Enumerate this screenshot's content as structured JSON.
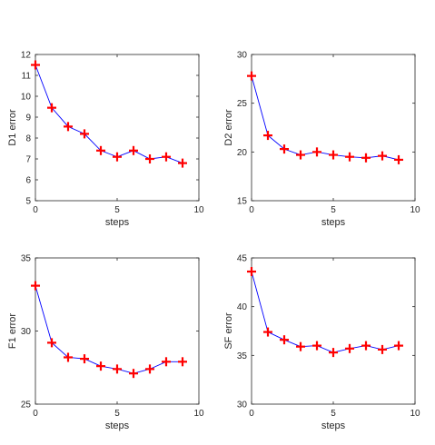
{
  "chart_data": [
    {
      "type": "line",
      "xlabel": "steps",
      "ylabel": "D1 error",
      "xlim": [
        0,
        10
      ],
      "ylim": [
        5,
        12
      ],
      "xticks": [
        0,
        5,
        10
      ],
      "yticks": [
        5,
        6,
        7,
        8,
        9,
        10,
        11,
        12
      ],
      "x": [
        0,
        1,
        2,
        3,
        4,
        5,
        6,
        7,
        8,
        9
      ],
      "values": [
        11.5,
        9.45,
        8.55,
        8.2,
        7.4,
        7.1,
        7.4,
        7.0,
        7.1,
        6.8
      ],
      "marker": "plus",
      "line_color": "#0000ff",
      "marker_color": "#ff0000",
      "grid": false
    },
    {
      "type": "line",
      "xlabel": "steps",
      "ylabel": "D2 error",
      "xlim": [
        0,
        10
      ],
      "ylim": [
        15,
        30
      ],
      "xticks": [
        0,
        5,
        10
      ],
      "yticks": [
        15,
        20,
        25,
        30
      ],
      "x": [
        0,
        1,
        2,
        3,
        4,
        5,
        6,
        7,
        8,
        9
      ],
      "values": [
        27.8,
        21.7,
        20.3,
        19.7,
        20.0,
        19.7,
        19.5,
        19.4,
        19.6,
        19.2
      ],
      "marker": "plus",
      "line_color": "#0000ff",
      "marker_color": "#ff0000",
      "grid": false
    },
    {
      "type": "line",
      "xlabel": "steps",
      "ylabel": "F1 error",
      "xlim": [
        0,
        10
      ],
      "ylim": [
        25,
        35
      ],
      "xticks": [
        0,
        5,
        10
      ],
      "yticks": [
        25,
        30,
        35
      ],
      "x": [
        0,
        1,
        2,
        3,
        4,
        5,
        6,
        7,
        8,
        9
      ],
      "values": [
        33.1,
        29.2,
        28.2,
        28.1,
        27.6,
        27.4,
        27.1,
        27.4,
        27.9,
        27.9
      ],
      "marker": "plus",
      "line_color": "#0000ff",
      "marker_color": "#ff0000",
      "grid": false
    },
    {
      "type": "line",
      "xlabel": "steps",
      "ylabel": "SF error",
      "xlim": [
        0,
        10
      ],
      "ylim": [
        30,
        45
      ],
      "xticks": [
        0,
        5,
        10
      ],
      "yticks": [
        30,
        35,
        40,
        45
      ],
      "x": [
        0,
        1,
        2,
        3,
        4,
        5,
        6,
        7,
        8,
        9
      ],
      "values": [
        43.6,
        37.4,
        36.6,
        35.9,
        36.0,
        35.3,
        35.7,
        36.0,
        35.6,
        36.0
      ],
      "marker": "plus",
      "line_color": "#0000ff",
      "marker_color": "#ff0000",
      "grid": false
    }
  ]
}
